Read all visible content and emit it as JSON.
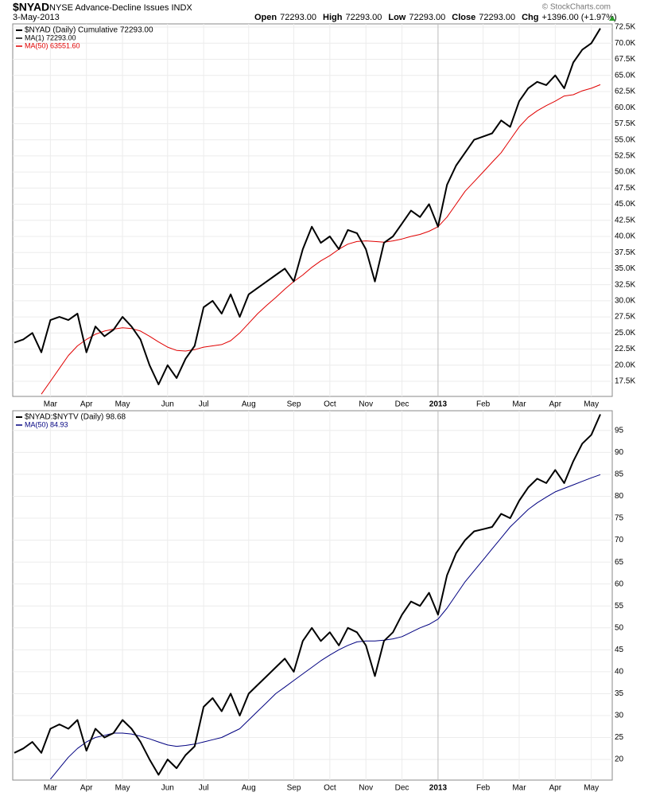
{
  "header": {
    "symbol": "$NYAD",
    "name": "NYSE Advance-Decline Issues INDX",
    "date": "3-May-2013",
    "copyright": "© StockCharts.com",
    "quote": [
      {
        "label": "Open",
        "value": "72293.00"
      },
      {
        "label": "High",
        "value": "72293.00"
      },
      {
        "label": "Low",
        "value": "72293.00"
      },
      {
        "label": "Close",
        "value": "72293.00"
      },
      {
        "label": "Chg",
        "value": "+1396.00 (+1.97%)"
      }
    ]
  },
  "chart_data": [
    {
      "type": "line",
      "panel_label": "$NYAD (Daily) Cumulative 72293.00",
      "categories": [
        null,
        null,
        null,
        null,
        "Mar",
        null,
        null,
        null,
        "Apr",
        null,
        null,
        null,
        "May",
        null,
        null,
        null,
        null,
        "Jun",
        null,
        null,
        null,
        "Jul",
        null,
        null,
        null,
        null,
        "Aug",
        null,
        null,
        null,
        null,
        "Sep",
        null,
        null,
        null,
        "Oct",
        null,
        null,
        null,
        "Nov",
        null,
        null,
        null,
        "Dec",
        null,
        null,
        null,
        "2013",
        null,
        null,
        null,
        null,
        "Feb",
        null,
        null,
        null,
        "Mar",
        null,
        null,
        null,
        "Apr",
        null,
        null,
        null,
        "May",
        null
      ],
      "series": [
        {
          "name": "MA(1) 72293.00",
          "color": "#000000",
          "values": [
            23500,
            24000,
            25000,
            22000,
            27000,
            27500,
            27000,
            28000,
            22000,
            26000,
            24500,
            25500,
            27500,
            26000,
            24000,
            20000,
            17000,
            20000,
            18000,
            21000,
            23000,
            29000,
            30000,
            28000,
            31000,
            27500,
            31000,
            32000,
            33000,
            34000,
            35000,
            33000,
            38000,
            41500,
            39000,
            40000,
            38000,
            41000,
            40500,
            38000,
            33000,
            39000,
            40000,
            42000,
            44000,
            43000,
            45000,
            41500,
            48000,
            51000,
            53000,
            55000,
            55500,
            56000,
            58000,
            57000,
            61000,
            63000,
            64000,
            63500,
            65000,
            63000,
            67000,
            69000,
            70000,
            72293
          ]
        },
        {
          "name": "MA(50) 63551.60",
          "color": "#e00000",
          "values": [
            null,
            null,
            null,
            15500,
            17500,
            19500,
            21500,
            23000,
            24000,
            24800,
            25300,
            25600,
            25800,
            25700,
            25300,
            24500,
            23600,
            22800,
            22300,
            22200,
            22400,
            22800,
            23000,
            23200,
            23800,
            25000,
            26500,
            28000,
            29300,
            30500,
            31800,
            33000,
            34000,
            35200,
            36200,
            37000,
            38000,
            38800,
            39200,
            39300,
            39200,
            39100,
            39300,
            39600,
            40000,
            40300,
            40800,
            41500,
            43000,
            45000,
            47000,
            48500,
            50000,
            51500,
            53000,
            55000,
            57000,
            58500,
            59500,
            60300,
            61000,
            61800,
            62000,
            62600,
            63000,
            63551.6
          ]
        }
      ],
      "ylim": [
        15150,
        73000
      ],
      "yticks": [
        {
          "value": 17500,
          "label": "17.5K"
        },
        {
          "value": 20000,
          "label": "20.0K"
        },
        {
          "value": 22500,
          "label": "22.5K"
        },
        {
          "value": 25000,
          "label": "25.0K"
        },
        {
          "value": 27500,
          "label": "27.5K"
        },
        {
          "value": 30000,
          "label": "30.0K"
        },
        {
          "value": 32500,
          "label": "32.5K"
        },
        {
          "value": 35000,
          "label": "35.0K"
        },
        {
          "value": 37500,
          "label": "37.5K"
        },
        {
          "value": 40000,
          "label": "40.0K"
        },
        {
          "value": 42500,
          "label": "42.5K"
        },
        {
          "value": 45000,
          "label": "45.0K"
        },
        {
          "value": 47500,
          "label": "47.5K"
        },
        {
          "value": 50000,
          "label": "50.0K"
        },
        {
          "value": 52500,
          "label": "52.5K"
        },
        {
          "value": 55000,
          "label": "55.0K"
        },
        {
          "value": 57500,
          "label": "57.5K"
        },
        {
          "value": 60000,
          "label": "60.0K"
        },
        {
          "value": 62500,
          "label": "62.5K"
        },
        {
          "value": 65000,
          "label": "65.0K"
        },
        {
          "value": 67500,
          "label": "67.5K"
        },
        {
          "value": 70000,
          "label": "70.0K"
        },
        {
          "value": 72500,
          "label": "72.5K"
        }
      ],
      "grid": true
    },
    {
      "type": "line",
      "panel_label": "$NYAD:$NYTV (Daily) 98.68",
      "categories": [
        null,
        null,
        null,
        null,
        "Mar",
        null,
        null,
        null,
        "Apr",
        null,
        null,
        null,
        "May",
        null,
        null,
        null,
        null,
        "Jun",
        null,
        null,
        null,
        "Jul",
        null,
        null,
        null,
        null,
        "Aug",
        null,
        null,
        null,
        null,
        "Sep",
        null,
        null,
        null,
        "Oct",
        null,
        null,
        null,
        "Nov",
        null,
        null,
        null,
        "Dec",
        null,
        null,
        null,
        "2013",
        null,
        null,
        null,
        null,
        "Feb",
        null,
        null,
        null,
        "Mar",
        null,
        null,
        null,
        "Apr",
        null,
        null,
        null,
        "May",
        null
      ],
      "series": [
        {
          "name": null,
          "color": "#000000",
          "values": [
            21.5,
            22.5,
            24,
            21.5,
            27,
            28,
            27,
            29,
            22,
            27,
            25,
            26,
            29,
            27,
            24,
            20,
            16.5,
            20,
            18,
            21,
            23,
            32,
            34,
            31,
            35,
            30,
            35,
            37,
            39,
            41,
            43,
            40,
            47,
            50,
            47,
            49,
            46,
            50,
            49,
            46,
            39,
            47,
            49,
            53,
            56,
            55,
            58,
            53,
            62,
            67,
            70,
            72,
            72.5,
            73,
            76,
            75,
            79,
            82,
            84,
            83,
            86,
            83,
            88,
            92,
            94,
            98.68
          ]
        },
        {
          "name": "MA(50) 84.93",
          "color": "#000080",
          "values": [
            null,
            null,
            null,
            null,
            15.5,
            18,
            20.5,
            22.5,
            24,
            25,
            25.5,
            26,
            26,
            25.8,
            25.3,
            24.7,
            24,
            23.3,
            23,
            23.2,
            23.5,
            24,
            24.5,
            25,
            26,
            27,
            29,
            31,
            33,
            35,
            36.5,
            38,
            39.5,
            41,
            42.5,
            43.8,
            45,
            46,
            46.8,
            47,
            47,
            47.2,
            47.5,
            48,
            49,
            50,
            50.8,
            52,
            54.5,
            57.5,
            60.5,
            63,
            65.5,
            68,
            70.5,
            73,
            75,
            77,
            78.5,
            79.8,
            81,
            81.8,
            82.6,
            83.4,
            84.2,
            84.93
          ]
        }
      ],
      "ylim": [
        15.3,
        99.5
      ],
      "yticks": [
        20,
        25,
        30,
        35,
        40,
        45,
        50,
        55,
        60,
        65,
        70,
        75,
        80,
        85,
        90,
        95
      ],
      "grid": true
    }
  ]
}
